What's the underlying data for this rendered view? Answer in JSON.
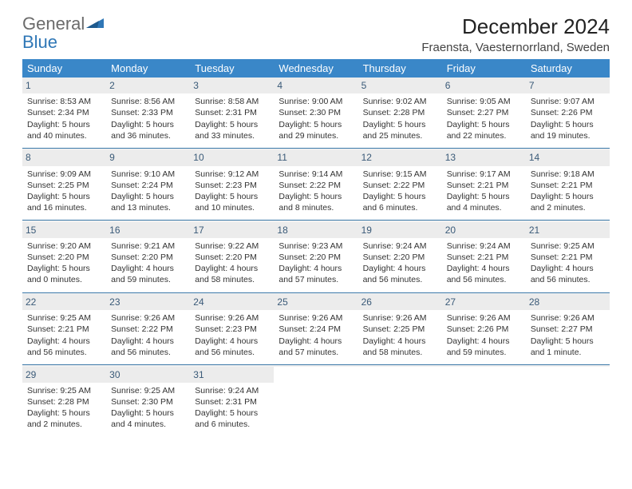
{
  "logo": {
    "text_gray": "General",
    "text_blue": "Blue"
  },
  "title": "December 2024",
  "location": "Fraensta, Vaesternorrland, Sweden",
  "colors": {
    "header_bg": "#3a87c8",
    "header_text": "#ffffff",
    "daynum_bg": "#ececec",
    "daynum_text": "#3a5a78",
    "separator": "#3a78a8",
    "logo_blue": "#2f77b6"
  },
  "weekdays": [
    "Sunday",
    "Monday",
    "Tuesday",
    "Wednesday",
    "Thursday",
    "Friday",
    "Saturday"
  ],
  "weeks": [
    [
      {
        "n": "1",
        "sr": "Sunrise: 8:53 AM",
        "ss": "Sunset: 2:34 PM",
        "dl1": "Daylight: 5 hours",
        "dl2": "and 40 minutes."
      },
      {
        "n": "2",
        "sr": "Sunrise: 8:56 AM",
        "ss": "Sunset: 2:33 PM",
        "dl1": "Daylight: 5 hours",
        "dl2": "and 36 minutes."
      },
      {
        "n": "3",
        "sr": "Sunrise: 8:58 AM",
        "ss": "Sunset: 2:31 PM",
        "dl1": "Daylight: 5 hours",
        "dl2": "and 33 minutes."
      },
      {
        "n": "4",
        "sr": "Sunrise: 9:00 AM",
        "ss": "Sunset: 2:30 PM",
        "dl1": "Daylight: 5 hours",
        "dl2": "and 29 minutes."
      },
      {
        "n": "5",
        "sr": "Sunrise: 9:02 AM",
        "ss": "Sunset: 2:28 PM",
        "dl1": "Daylight: 5 hours",
        "dl2": "and 25 minutes."
      },
      {
        "n": "6",
        "sr": "Sunrise: 9:05 AM",
        "ss": "Sunset: 2:27 PM",
        "dl1": "Daylight: 5 hours",
        "dl2": "and 22 minutes."
      },
      {
        "n": "7",
        "sr": "Sunrise: 9:07 AM",
        "ss": "Sunset: 2:26 PM",
        "dl1": "Daylight: 5 hours",
        "dl2": "and 19 minutes."
      }
    ],
    [
      {
        "n": "8",
        "sr": "Sunrise: 9:09 AM",
        "ss": "Sunset: 2:25 PM",
        "dl1": "Daylight: 5 hours",
        "dl2": "and 16 minutes."
      },
      {
        "n": "9",
        "sr": "Sunrise: 9:10 AM",
        "ss": "Sunset: 2:24 PM",
        "dl1": "Daylight: 5 hours",
        "dl2": "and 13 minutes."
      },
      {
        "n": "10",
        "sr": "Sunrise: 9:12 AM",
        "ss": "Sunset: 2:23 PM",
        "dl1": "Daylight: 5 hours",
        "dl2": "and 10 minutes."
      },
      {
        "n": "11",
        "sr": "Sunrise: 9:14 AM",
        "ss": "Sunset: 2:22 PM",
        "dl1": "Daylight: 5 hours",
        "dl2": "and 8 minutes."
      },
      {
        "n": "12",
        "sr": "Sunrise: 9:15 AM",
        "ss": "Sunset: 2:22 PM",
        "dl1": "Daylight: 5 hours",
        "dl2": "and 6 minutes."
      },
      {
        "n": "13",
        "sr": "Sunrise: 9:17 AM",
        "ss": "Sunset: 2:21 PM",
        "dl1": "Daylight: 5 hours",
        "dl2": "and 4 minutes."
      },
      {
        "n": "14",
        "sr": "Sunrise: 9:18 AM",
        "ss": "Sunset: 2:21 PM",
        "dl1": "Daylight: 5 hours",
        "dl2": "and 2 minutes."
      }
    ],
    [
      {
        "n": "15",
        "sr": "Sunrise: 9:20 AM",
        "ss": "Sunset: 2:20 PM",
        "dl1": "Daylight: 5 hours",
        "dl2": "and 0 minutes."
      },
      {
        "n": "16",
        "sr": "Sunrise: 9:21 AM",
        "ss": "Sunset: 2:20 PM",
        "dl1": "Daylight: 4 hours",
        "dl2": "and 59 minutes."
      },
      {
        "n": "17",
        "sr": "Sunrise: 9:22 AM",
        "ss": "Sunset: 2:20 PM",
        "dl1": "Daylight: 4 hours",
        "dl2": "and 58 minutes."
      },
      {
        "n": "18",
        "sr": "Sunrise: 9:23 AM",
        "ss": "Sunset: 2:20 PM",
        "dl1": "Daylight: 4 hours",
        "dl2": "and 57 minutes."
      },
      {
        "n": "19",
        "sr": "Sunrise: 9:24 AM",
        "ss": "Sunset: 2:20 PM",
        "dl1": "Daylight: 4 hours",
        "dl2": "and 56 minutes."
      },
      {
        "n": "20",
        "sr": "Sunrise: 9:24 AM",
        "ss": "Sunset: 2:21 PM",
        "dl1": "Daylight: 4 hours",
        "dl2": "and 56 minutes."
      },
      {
        "n": "21",
        "sr": "Sunrise: 9:25 AM",
        "ss": "Sunset: 2:21 PM",
        "dl1": "Daylight: 4 hours",
        "dl2": "and 56 minutes."
      }
    ],
    [
      {
        "n": "22",
        "sr": "Sunrise: 9:25 AM",
        "ss": "Sunset: 2:21 PM",
        "dl1": "Daylight: 4 hours",
        "dl2": "and 56 minutes."
      },
      {
        "n": "23",
        "sr": "Sunrise: 9:26 AM",
        "ss": "Sunset: 2:22 PM",
        "dl1": "Daylight: 4 hours",
        "dl2": "and 56 minutes."
      },
      {
        "n": "24",
        "sr": "Sunrise: 9:26 AM",
        "ss": "Sunset: 2:23 PM",
        "dl1": "Daylight: 4 hours",
        "dl2": "and 56 minutes."
      },
      {
        "n": "25",
        "sr": "Sunrise: 9:26 AM",
        "ss": "Sunset: 2:24 PM",
        "dl1": "Daylight: 4 hours",
        "dl2": "and 57 minutes."
      },
      {
        "n": "26",
        "sr": "Sunrise: 9:26 AM",
        "ss": "Sunset: 2:25 PM",
        "dl1": "Daylight: 4 hours",
        "dl2": "and 58 minutes."
      },
      {
        "n": "27",
        "sr": "Sunrise: 9:26 AM",
        "ss": "Sunset: 2:26 PM",
        "dl1": "Daylight: 4 hours",
        "dl2": "and 59 minutes."
      },
      {
        "n": "28",
        "sr": "Sunrise: 9:26 AM",
        "ss": "Sunset: 2:27 PM",
        "dl1": "Daylight: 5 hours",
        "dl2": "and 1 minute."
      }
    ],
    [
      {
        "n": "29",
        "sr": "Sunrise: 9:25 AM",
        "ss": "Sunset: 2:28 PM",
        "dl1": "Daylight: 5 hours",
        "dl2": "and 2 minutes."
      },
      {
        "n": "30",
        "sr": "Sunrise: 9:25 AM",
        "ss": "Sunset: 2:30 PM",
        "dl1": "Daylight: 5 hours",
        "dl2": "and 4 minutes."
      },
      {
        "n": "31",
        "sr": "Sunrise: 9:24 AM",
        "ss": "Sunset: 2:31 PM",
        "dl1": "Daylight: 5 hours",
        "dl2": "and 6 minutes."
      },
      null,
      null,
      null,
      null
    ]
  ]
}
